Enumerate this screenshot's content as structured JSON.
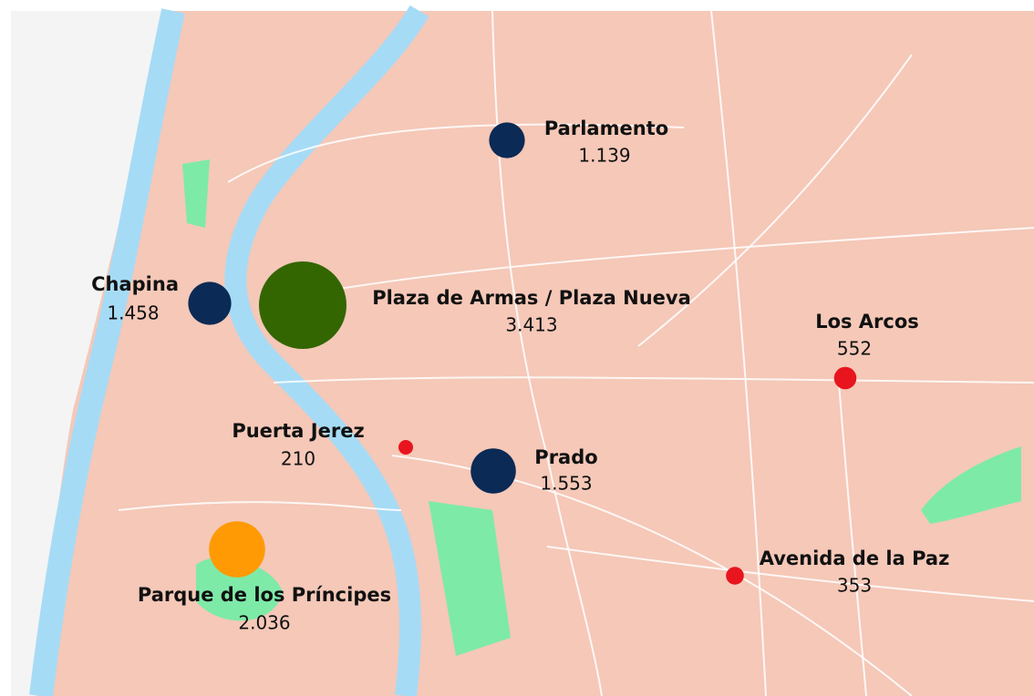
{
  "stations": [
    {
      "name": "Parlamento",
      "value": 1139,
      "value_label": "1.139",
      "color": "#0b2a55"
    },
    {
      "name": "Chapina",
      "value": 1458,
      "value_label": "1.458",
      "color": "#0b2a55"
    },
    {
      "name": "Plaza de Armas / Plaza Nueva",
      "value": 3413,
      "value_label": "3.413",
      "color": "#336600"
    },
    {
      "name": "Los Arcos",
      "value": 552,
      "value_label": "552",
      "color": "#e8141e"
    },
    {
      "name": "Puerta Jerez",
      "value": 210,
      "value_label": "210",
      "color": "#e8141e"
    },
    {
      "name": "Prado",
      "value": 1553,
      "value_label": "1.553",
      "color": "#0b2a55"
    },
    {
      "name": "Avenida de la Paz",
      "value": 353,
      "value_label": "353",
      "color": "#e8141e"
    },
    {
      "name": "Parque de los Príncipes",
      "value": 2036,
      "value_label": "2.036",
      "color": "#ff9a05"
    }
  ]
}
